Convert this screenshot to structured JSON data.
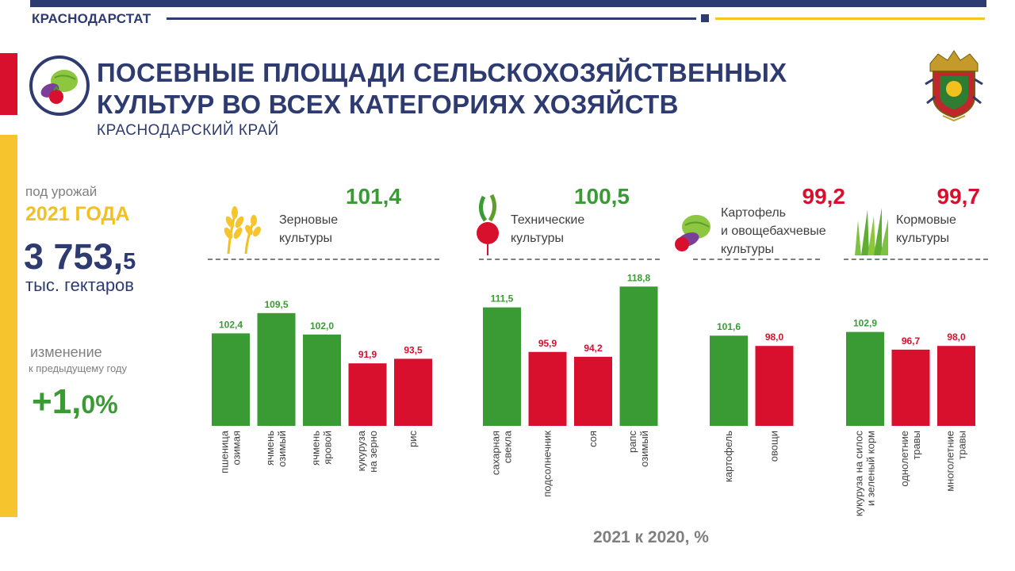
{
  "header": {
    "brand": "КРАСНОДАРСТАТ",
    "title_line1": "ПОСЕВНЫЕ ПЛОЩАДИ СЕЛЬСКОХОЗЯЙСТВЕННЫХ",
    "title_line2": "КУЛЬТУР ВО ВСЕХ КАТЕГОРИЯХ ХОЗЯЙСТВ",
    "subtitle": "КРАСНОДАРСКИЙ КРАЙ"
  },
  "summary": {
    "harvest_label": "под урожай",
    "year_label": "2021 ГОДА",
    "total_int": "3 753,",
    "total_dec": "5",
    "unit": "тыс. гектаров",
    "change_label": "изменение",
    "change_sub": "к предыдущему году",
    "change_int": "+1,",
    "change_dec": "0%"
  },
  "colors": {
    "navy": "#2e3b70",
    "green": "#3a9b35",
    "red": "#d8102e",
    "yellow": "#f6c42d"
  },
  "footer": {
    "label": "2021 к 2020, %"
  },
  "chart_data": {
    "type": "bar",
    "unit_label": "2021 к 2020, %",
    "baseline": 100,
    "groups": [
      {
        "name_line1": "Зерновые",
        "name_line2": "культуры",
        "name_line3": "",
        "value": "101,4",
        "icon": "wheat-icon",
        "bars": [
          {
            "category": "пшеница озимая",
            "label_lines": [
              "пшеница",
              "озимая"
            ],
            "value": 102.4,
            "label": "102,4"
          },
          {
            "category": "ячмень озимый",
            "label_lines": [
              "ячмень",
              "озимый"
            ],
            "value": 109.5,
            "label": "109,5"
          },
          {
            "category": "ячмень яровой",
            "label_lines": [
              "ячмень",
              "яровой"
            ],
            "value": 102.0,
            "label": "102,0"
          },
          {
            "category": "кукуруза на зерно",
            "label_lines": [
              "кукуруза",
              "на зерно"
            ],
            "value": 91.9,
            "label": "91,9"
          },
          {
            "category": "рис",
            "label_lines": [
              "рис"
            ],
            "value": 93.5,
            "label": "93,5"
          }
        ]
      },
      {
        "name_line1": "Технические",
        "name_line2": "культуры",
        "name_line3": "",
        "value": "100,5",
        "icon": "beet-icon",
        "bars": [
          {
            "category": "сахарная свекла",
            "label_lines": [
              "сахарная",
              "свекла"
            ],
            "value": 111.5,
            "label": "111,5"
          },
          {
            "category": "подсолнечник",
            "label_lines": [
              "подсолнечник"
            ],
            "value": 95.9,
            "label": "95,9"
          },
          {
            "category": "соя",
            "label_lines": [
              "соя"
            ],
            "value": 94.2,
            "label": "94,2"
          },
          {
            "category": "рапс озимый",
            "label_lines": [
              "рапс",
              "озимый"
            ],
            "value": 118.8,
            "label": "118,8"
          }
        ]
      },
      {
        "name_line1": "Картофель",
        "name_line2": "и овощебахчевые",
        "name_line3": "культуры",
        "value": "99,2",
        "icon": "vegetables-icon",
        "bars": [
          {
            "category": "картофель",
            "label_lines": [
              "картофель"
            ],
            "value": 101.6,
            "label": "101,6"
          },
          {
            "category": "овощи",
            "label_lines": [
              "овощи"
            ],
            "value": 98.0,
            "label": "98,0"
          }
        ]
      },
      {
        "name_line1": "Кормовые",
        "name_line2": "культуры",
        "name_line3": "",
        "value": "99,7",
        "icon": "grass-icon",
        "bars": [
          {
            "category": "кукуруза на силос и зеленый корм",
            "label_lines": [
              "кукуруза на силос",
              "и зеленый корм"
            ],
            "value": 102.9,
            "label": "102,9"
          },
          {
            "category": "однолетние травы",
            "label_lines": [
              "однолетние",
              "травы"
            ],
            "value": 96.7,
            "label": "96,7"
          },
          {
            "category": "многолетние травы",
            "label_lines": [
              "многолетние",
              "травы"
            ],
            "value": 98.0,
            "label": "98,0"
          }
        ]
      }
    ]
  }
}
